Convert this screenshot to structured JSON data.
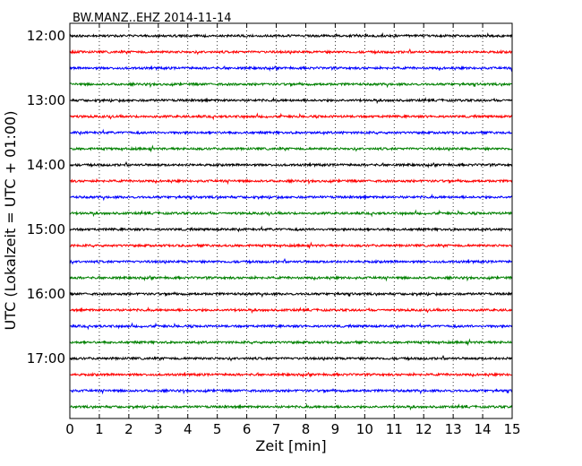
{
  "chart_data": {
    "type": "line",
    "title": "BW.MANZ..EHZ 2014-11-14",
    "xlabel": "Zeit  [min]",
    "ylabel": "UTC (Lokalzeit = UTC + 01:00)",
    "xlim": [
      0,
      15
    ],
    "x_ticks": [
      "0",
      "1",
      "2",
      "3",
      "4",
      "5",
      "6",
      "7",
      "8",
      "9",
      "10",
      "11",
      "12",
      "13",
      "14",
      "15"
    ],
    "y_ticks": [
      "12:00",
      "13:00",
      "14:00",
      "15:00",
      "16:00",
      "17:00"
    ],
    "grid": "vertical dotted",
    "trace_interval_min": 15,
    "color_cycle": [
      "#000000",
      "#ff0000",
      "#0000ff",
      "#008000"
    ],
    "traces": [
      {
        "start": "12:00",
        "color": "#000000"
      },
      {
        "start": "12:15",
        "color": "#ff0000"
      },
      {
        "start": "12:30",
        "color": "#0000ff"
      },
      {
        "start": "12:45",
        "color": "#008000"
      },
      {
        "start": "13:00",
        "color": "#000000"
      },
      {
        "start": "13:15",
        "color": "#ff0000"
      },
      {
        "start": "13:30",
        "color": "#0000ff"
      },
      {
        "start": "13:45",
        "color": "#008000"
      },
      {
        "start": "14:00",
        "color": "#000000"
      },
      {
        "start": "14:15",
        "color": "#ff0000"
      },
      {
        "start": "14:30",
        "color": "#0000ff"
      },
      {
        "start": "14:45",
        "color": "#008000"
      },
      {
        "start": "15:00",
        "color": "#000000"
      },
      {
        "start": "15:15",
        "color": "#ff0000"
      },
      {
        "start": "15:30",
        "color": "#0000ff"
      },
      {
        "start": "15:45",
        "color": "#008000"
      },
      {
        "start": "16:00",
        "color": "#000000"
      },
      {
        "start": "16:15",
        "color": "#ff0000"
      },
      {
        "start": "16:30",
        "color": "#0000ff"
      },
      {
        "start": "16:45",
        "color": "#008000"
      },
      {
        "start": "17:00",
        "color": "#000000"
      },
      {
        "start": "17:15",
        "color": "#ff0000"
      },
      {
        "start": "17:30",
        "color": "#0000ff"
      },
      {
        "start": "17:45",
        "color": "#008000"
      }
    ]
  }
}
